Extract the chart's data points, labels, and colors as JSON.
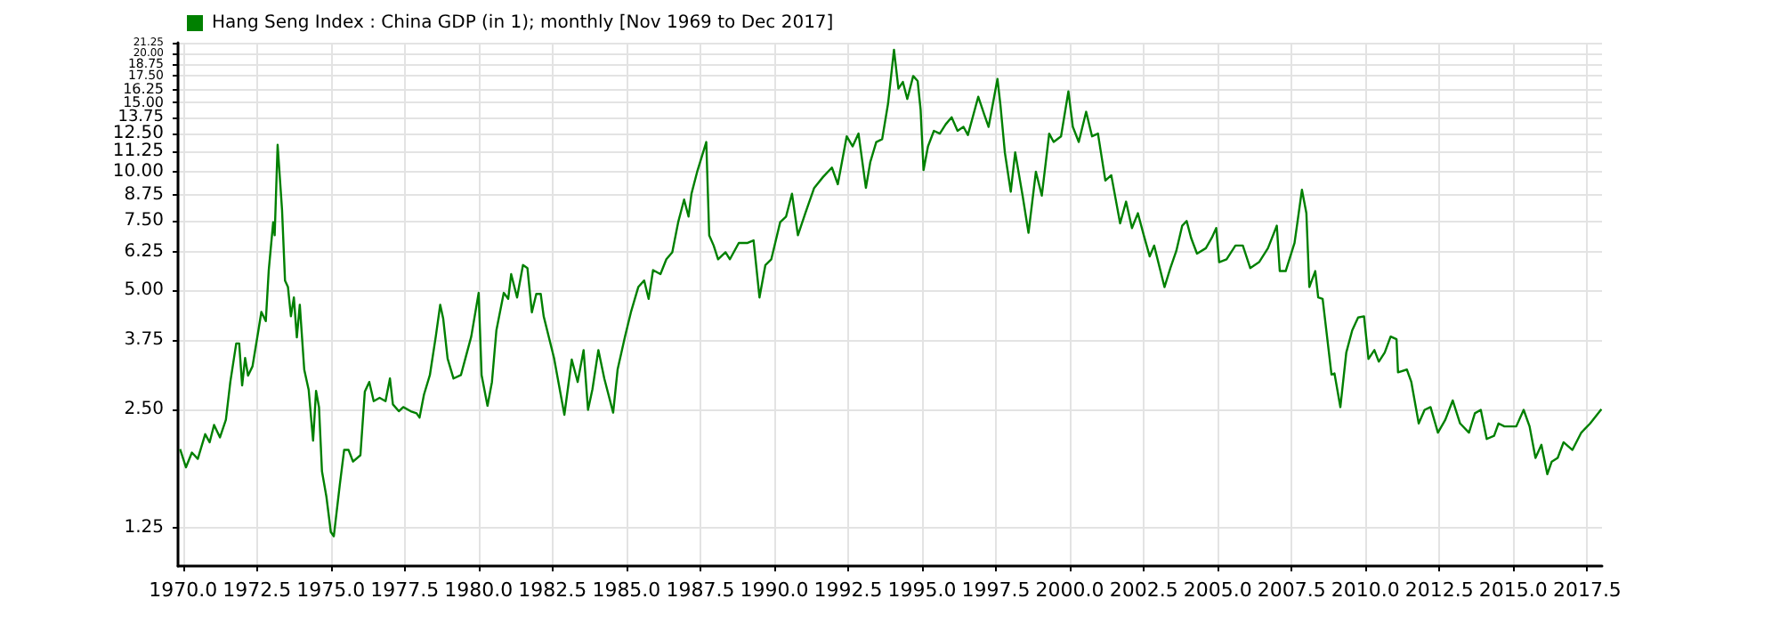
{
  "chart_data": {
    "type": "line",
    "legend": "top left",
    "grid": true,
    "marker": "none",
    "line_style": "solid",
    "log": "y",
    "xlim": [
      1969.83,
      2018.0
    ],
    "xticks": [
      {
        "value": 1970,
        "label": "1970.0"
      },
      1972.5,
      {
        "value": 1975,
        "label": "1975.0"
      },
      1977.5,
      {
        "value": 1980,
        "label": "1980.0"
      },
      1982.5,
      {
        "value": 1985,
        "label": "1985.0"
      },
      1987.5,
      {
        "value": 1990,
        "label": "1990.0"
      },
      1992.5,
      {
        "value": 1995,
        "label": "1995.0"
      },
      1997.5,
      {
        "value": 2000,
        "label": "2000.0"
      },
      2002.5,
      {
        "value": 2005,
        "label": "2005.0"
      },
      2007.5,
      {
        "value": 2010,
        "label": "2010.0"
      },
      2012.5,
      {
        "value": 2015,
        "label": "2015.0"
      },
      2017.5
    ],
    "ylim": [
      1,
      21.25
    ],
    "yticks": [
      1.25,
      {
        "value": 2.5,
        "label": "2.50"
      },
      3.75,
      {
        "value": 5,
        "label": "5.00"
      },
      6.25,
      {
        "value": 7.5,
        "label": "7.50"
      },
      8.75,
      {
        "value": 10,
        "label": "10.00"
      },
      11.25,
      {
        "value": 12.5,
        "label": "12.50"
      },
      13.75,
      {
        "value": 15,
        "label": "15.00"
      },
      16.25,
      {
        "value": 17.5,
        "label": "17.50"
      },
      18.75,
      {
        "value": 20,
        "label": "20.00"
      },
      21.25
    ],
    "series": [
      {
        "name": "Hang Seng Index : China GDP (in 1); monthly [Nov 1969 to Dec 2017]",
        "color": "#008000",
        "x": [
          1969.9,
          1970.1,
          1970.3,
          1970.5,
          1970.75,
          1970.9,
          1971.05,
          1971.25,
          1971.45,
          1971.6,
          1971.8,
          1971.9,
          1972.0,
          1972.1,
          1972.2,
          1972.35,
          1972.55,
          1972.65,
          1972.8,
          1972.9,
          1973.05,
          1973.1,
          1973.2,
          1973.35,
          1973.45,
          1973.55,
          1973.65,
          1973.75,
          1973.85,
          1973.95,
          1974.1,
          1974.25,
          1974.4,
          1974.5,
          1974.6,
          1974.7,
          1974.85,
          1975.0,
          1975.1,
          1975.3,
          1975.45,
          1975.6,
          1975.75,
          1976.0,
          1976.15,
          1976.3,
          1976.45,
          1976.65,
          1976.85,
          1977.0,
          1977.1,
          1977.3,
          1977.45,
          1977.7,
          1977.9,
          1978.0,
          1978.15,
          1978.35,
          1978.55,
          1978.7,
          1978.8,
          1978.95,
          1979.15,
          1979.4,
          1979.55,
          1979.75,
          1980.0,
          1980.1,
          1980.3,
          1980.45,
          1980.6,
          1980.85,
          1981.0,
          1981.1,
          1981.3,
          1981.5,
          1981.65,
          1981.8,
          1981.95,
          1982.1,
          1982.2,
          1982.55,
          1982.9,
          1983.15,
          1983.35,
          1983.55,
          1983.7,
          1983.85,
          1984.05,
          1984.25,
          1984.55,
          1984.7,
          1984.95,
          1985.15,
          1985.4,
          1985.6,
          1985.75,
          1985.9,
          1986.15,
          1986.35,
          1986.55,
          1986.75,
          1986.95,
          1987.1,
          1987.2,
          1987.4,
          1987.7,
          1987.8,
          1987.95,
          1988.1,
          1988.35,
          1988.5,
          1988.8,
          1989.1,
          1989.3,
          1989.5,
          1989.7,
          1989.9,
          1990.2,
          1990.4,
          1990.6,
          1990.8,
          1991.05,
          1991.35,
          1991.65,
          1991.95,
          1992.15,
          1992.45,
          1992.65,
          1992.85,
          1993.1,
          1993.25,
          1993.45,
          1993.65,
          1993.85,
          1994.05,
          1994.2,
          1994.35,
          1994.5,
          1994.7,
          1994.85,
          1994.95,
          1995.05,
          1995.2,
          1995.4,
          1995.6,
          1995.8,
          1996.0,
          1996.2,
          1996.4,
          1996.55,
          1996.9,
          1997.1,
          1997.25,
          1997.55,
          1997.65,
          1997.8,
          1998.0,
          1998.15,
          1998.4,
          1998.6,
          1998.85,
          1999.05,
          1999.3,
          1999.45,
          1999.7,
          1999.95,
          2000.1,
          2000.3,
          2000.55,
          2000.75,
          2000.95,
          2001.2,
          2001.4,
          2001.7,
          2001.9,
          2002.1,
          2002.3,
          2002.5,
          2002.7,
          2002.85,
          2003.2,
          2003.4,
          2003.6,
          2003.8,
          2003.95,
          2004.1,
          2004.3,
          2004.6,
          2004.8,
          2004.95,
          2005.05,
          2005.3,
          2005.6,
          2005.85,
          2006.1,
          2006.4,
          2006.7,
          2007.0,
          2007.1,
          2007.3,
          2007.6,
          2007.85,
          2008.0,
          2008.1,
          2008.3,
          2008.4,
          2008.55,
          2008.85,
          2008.95,
          2009.15,
          2009.35,
          2009.55,
          2009.75,
          2009.95,
          2010.1,
          2010.3,
          2010.45,
          2010.65,
          2010.85,
          2011.05,
          2011.1,
          2011.4,
          2011.55,
          2011.8,
          2012.0,
          2012.2,
          2012.45,
          2012.7,
          2012.95,
          2013.2,
          2013.5,
          2013.7,
          2013.9,
          2014.1,
          2014.35,
          2014.5,
          2014.7,
          2015.1,
          2015.35,
          2015.55,
          2015.75,
          2015.95,
          2016.15,
          2016.3,
          2016.5,
          2016.7,
          2017.0,
          2017.3,
          2017.6,
          2017.98
        ],
        "values": [
          1.98,
          1.78,
          1.94,
          1.87,
          2.16,
          2.06,
          2.28,
          2.12,
          2.35,
          2.93,
          3.67,
          3.67,
          2.87,
          3.37,
          3.04,
          3.21,
          3.96,
          4.41,
          4.18,
          5.63,
          7.45,
          6.9,
          11.7,
          8.0,
          5.3,
          5.1,
          4.3,
          4.8,
          3.8,
          4.6,
          3.15,
          2.8,
          2.08,
          2.78,
          2.53,
          1.74,
          1.5,
          1.22,
          1.19,
          1.6,
          1.97,
          1.97,
          1.84,
          1.91,
          2.77,
          2.93,
          2.62,
          2.67,
          2.62,
          2.99,
          2.57,
          2.47,
          2.53,
          2.47,
          2.44,
          2.38,
          2.72,
          3.05,
          3.82,
          4.6,
          4.25,
          3.36,
          2.99,
          3.05,
          3.36,
          3.82,
          4.93,
          3.05,
          2.55,
          2.93,
          3.96,
          4.93,
          4.76,
          5.5,
          4.8,
          5.8,
          5.7,
          4.4,
          4.9,
          4.9,
          4.3,
          3.37,
          2.42,
          3.34,
          2.93,
          3.53,
          2.49,
          2.81,
          3.53,
          2.99,
          2.45,
          3.15,
          3.82,
          4.4,
          5.1,
          5.3,
          4.76,
          5.63,
          5.5,
          6.0,
          6.25,
          7.45,
          8.5,
          7.7,
          8.8,
          10.05,
          11.9,
          6.9,
          6.5,
          6.0,
          6.25,
          6.0,
          6.6,
          6.6,
          6.7,
          4.8,
          5.8,
          6.0,
          7.45,
          7.7,
          8.8,
          6.9,
          7.85,
          9.1,
          9.7,
          10.25,
          9.3,
          12.3,
          11.6,
          12.5,
          9.1,
          10.6,
          11.9,
          12.1,
          14.9,
          20.4,
          16.25,
          16.9,
          15.3,
          17.5,
          17,
          14.4,
          10.1,
          11.6,
          12.7,
          12.5,
          13.2,
          13.75,
          12.7,
          13,
          12.4,
          15.5,
          14,
          13,
          17.2,
          14.8,
          11.2,
          8.9,
          11.2,
          8.7,
          7.0,
          10,
          8.7,
          12.5,
          11.9,
          12.3,
          16,
          13,
          11.9,
          14.2,
          12.3,
          12.5,
          9.5,
          9.8,
          7.4,
          8.4,
          7.2,
          7.85,
          6.9,
          6.1,
          6.5,
          5.1,
          5.7,
          6.3,
          7.3,
          7.5,
          6.8,
          6.2,
          6.4,
          6.8,
          7.2,
          5.9,
          6.0,
          6.5,
          6.5,
          5.7,
          5.9,
          6.4,
          7.3,
          5.6,
          5.6,
          6.6,
          9.0,
          7.85,
          5.1,
          5.6,
          4.8,
          4.76,
          3.06,
          3.08,
          2.53,
          3.48,
          3.96,
          4.27,
          4.3,
          3.35,
          3.53,
          3.3,
          3.48,
          3.82,
          3.76,
          3.1,
          3.15,
          2.93,
          2.3,
          2.49,
          2.53,
          2.18,
          2.35,
          2.63,
          2.3,
          2.18,
          2.44,
          2.49,
          2.1,
          2.14,
          2.3,
          2.26,
          2.26,
          2.49,
          2.26,
          1.88,
          2.03,
          1.71,
          1.84,
          1.88,
          2.06,
          1.97,
          2.18,
          2.3,
          2.5
        ]
      }
    ]
  }
}
